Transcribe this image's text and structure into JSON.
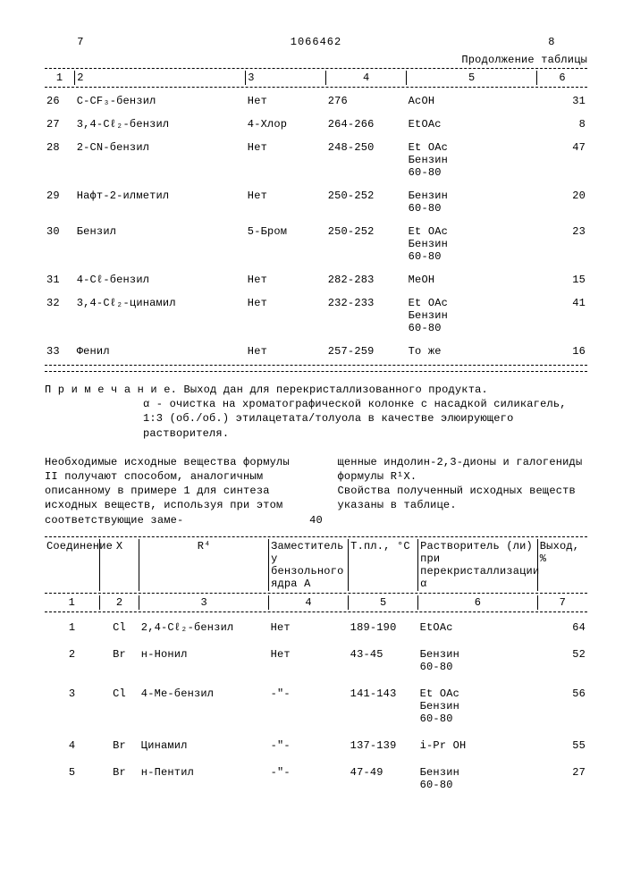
{
  "header": {
    "left_page": "7",
    "patent_no": "1066462",
    "right_page": "8",
    "continuation": "Продолжение таблицы"
  },
  "table1": {
    "headers": [
      "1",
      "2",
      "3",
      "4",
      "5",
      "6"
    ],
    "col_widths": [
      "30px",
      "170px",
      "80px",
      "80px",
      "130px",
      "50px"
    ],
    "rows": [
      {
        "c1": "26",
        "c2": "C-CF₃-бензил",
        "c3": "Нет",
        "c4": "276",
        "c5": "AcOH",
        "c6": "31"
      },
      {
        "c1": "27",
        "c2": "3,4-Cℓ₂-бензил",
        "c3": "4-Хлор",
        "c4": "264-266",
        "c5": "EtOAc",
        "c6": "8"
      },
      {
        "c1": "28",
        "c2": "2-CN-бензил",
        "c3": "Нет",
        "c4": "248-250",
        "c5": "Et OAc\nБензин\n60-80",
        "c6": "47"
      },
      {
        "c1": "29",
        "c2": "Нафт-2-илметил",
        "c3": "Нет",
        "c4": "250-252",
        "c5": "Бензин\n60-80",
        "c6": "20"
      },
      {
        "c1": "30",
        "c2": "Бензил",
        "c3": "5-Бром",
        "c4": "250-252",
        "c5": "Et OAc\nБензин\n60-80",
        "c6": "23"
      },
      {
        "c1": "31",
        "c2": "4-Cℓ-бензил",
        "c3": "Нет",
        "c4": "282-283",
        "c5": "MeOH",
        "c6": "15"
      },
      {
        "c1": "32",
        "c2": "3,4-Cℓ₂-цинамил",
        "c3": "Нет",
        "c4": "232-233",
        "c5": "Et OAc\nБензин\n60-80",
        "c6": "41"
      },
      {
        "c1": "33",
        "c2": "Фенил",
        "c3": "Нет",
        "c4": "257-259",
        "c5": "То же",
        "c6": "16"
      }
    ]
  },
  "note": {
    "lead": "П р и м е ч а н и е.",
    "line1": "Выход дан для перекристаллизованного продукта.",
    "line2": "α - очистка на хроматографической колонке с насадкой силикагель, 1:3 (об./об.) этилацетата/толуола в качестве элюирующего растворителя."
  },
  "bodytext": {
    "left": "Необходимые исходные вещества формулы II получают способом, аналогичным описанному в примере 1 для синтеза исходных веществ, используя при этом соответствующие заме-",
    "linenum": "40",
    "right": "щенные индолин-2,3-дионы и галогениды формулы R¹X.\nСвойства полученный исходных веществ указаны в таблице."
  },
  "table2": {
    "headers": {
      "h1": "Соединение",
      "h2": "X",
      "h3": "R⁴",
      "h4": "Заместитель у бензольного ядра А",
      "h5": "Т.пл., °C",
      "h6": "Растворитель (ли) при перекристаллизации α",
      "h7": "Выход, %"
    },
    "subheaders": [
      "1",
      "2",
      "3",
      "4",
      "5",
      "6",
      "7"
    ],
    "col_widths": [
      "55px",
      "40px",
      "130px",
      "80px",
      "70px",
      "120px",
      "50px"
    ],
    "rows": [
      {
        "c1": "1",
        "c2": "Cl",
        "c3": "2,4-Cℓ₂-бензил",
        "c4": "Нет",
        "c5": "189-190",
        "c6": "EtOAc",
        "c7": "64"
      },
      {
        "c1": "2",
        "c2": "Br",
        "c3": "н-Нонил",
        "c4": "Нет",
        "c5": "43-45",
        "c6": "Бензин\n60-80",
        "c7": "52"
      },
      {
        "c1": "3",
        "c2": "Cl",
        "c3": "4-Me-бензил",
        "c4": "-\"-",
        "c5": "141-143",
        "c6": "Et OAc\nБензин\n60-80",
        "c7": "56"
      },
      {
        "c1": "4",
        "c2": "Br",
        "c3": "Цинамил",
        "c4": "-\"-",
        "c5": "137-139",
        "c6": "i-Pr OH",
        "c7": "55"
      },
      {
        "c1": "5",
        "c2": "Br",
        "c3": "н-Пентил",
        "c4": "-\"-",
        "c5": "47-49",
        "c6": "Бензин\n60-80",
        "c7": "27"
      }
    ]
  }
}
